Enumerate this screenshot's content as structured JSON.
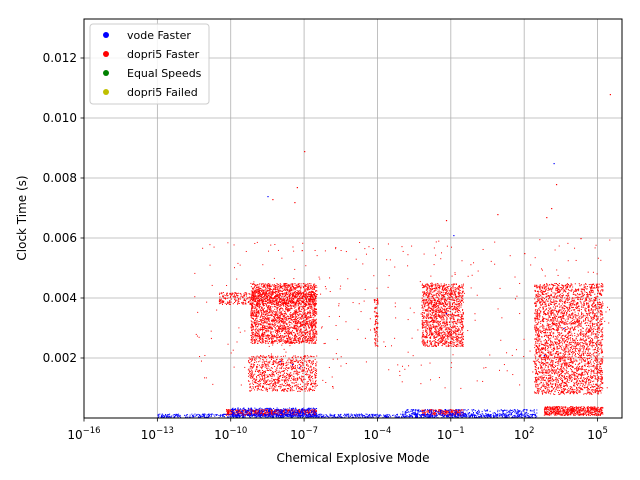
{
  "chart_data": {
    "type": "scatter",
    "xlabel": "Chemical Explosive Mode",
    "ylabel": "Clock Time (s)",
    "xscale": "log",
    "xlim_exponent": [
      -16,
      6.0
    ],
    "ylim": [
      0.0,
      0.0133
    ],
    "grid": true,
    "legend_position": "top-left",
    "x_ticks": [
      {
        "exp": -16,
        "label": "10",
        "sup": "−16"
      },
      {
        "exp": -13,
        "label": "10",
        "sup": "−13"
      },
      {
        "exp": -10,
        "label": "10",
        "sup": "−10"
      },
      {
        "exp": -7,
        "label": "10",
        "sup": "−7"
      },
      {
        "exp": -4,
        "label": "10",
        "sup": "−4"
      },
      {
        "exp": -1,
        "label": "10",
        "sup": "−1"
      },
      {
        "exp": 2,
        "label": "10",
        "sup": "2"
      },
      {
        "exp": 5,
        "label": "10",
        "sup": "5"
      }
    ],
    "y_ticks": [
      {
        "value": 0.002,
        "label": "0.002"
      },
      {
        "value": 0.004,
        "label": "0.004"
      },
      {
        "value": 0.006,
        "label": "0.006"
      },
      {
        "value": 0.008,
        "label": "0.008"
      },
      {
        "value": 0.01,
        "label": "0.010"
      },
      {
        "value": 0.012,
        "label": "0.012"
      }
    ],
    "series": [
      {
        "name": "vode Faster",
        "color": "#0000ff",
        "clusters": [
          {
            "log10x": [
              -13.0,
              2.5
            ],
            "y": [
              3e-05,
              0.00015
            ],
            "n": 900
          },
          {
            "log10x": [
              -10.0,
              -6.5
            ],
            "y": [
              5e-05,
              0.00035
            ],
            "n": 500
          },
          {
            "log10x": [
              -3.0,
              2.5
            ],
            "y": [
              5e-05,
              0.0003
            ],
            "n": 400
          }
        ],
        "points": [
          {
            "log10x": -8.0,
            "y": 0.0019
          },
          {
            "log10x": -7.5,
            "y": 0.0018
          },
          {
            "log10x": -7.2,
            "y": 0.0017
          },
          {
            "log10x": -0.9,
            "y": 0.0061
          },
          {
            "log10x": 3.2,
            "y": 0.0085
          },
          {
            "log10x": 3.6,
            "y": 0.003
          },
          {
            "log10x": -8.5,
            "y": 0.0074
          },
          {
            "log10x": -1.2,
            "y": 0.0035
          },
          {
            "log10x": 2.8,
            "y": 0.0021
          }
        ]
      },
      {
        "name": "dopri5 Faster",
        "color": "#ff0000",
        "clusters": [
          {
            "log10x": [
              -9.2,
              -6.5
            ],
            "y": [
              0.0025,
              0.0045
            ],
            "n": 2600
          },
          {
            "log10x": [
              -10.5,
              -6.5
            ],
            "y": [
              0.0038,
              0.0042
            ],
            "n": 500
          },
          {
            "log10x": [
              -9.3,
              -6.5
            ],
            "y": [
              0.0009,
              0.0021
            ],
            "n": 900
          },
          {
            "log10x": [
              -10.2,
              -6.5
            ],
            "y": [
              0.0001,
              0.0003
            ],
            "n": 700
          },
          {
            "log10x": [
              -4.15,
              -4.0
            ],
            "y": [
              0.0024,
              0.0041
            ],
            "n": 90
          },
          {
            "log10x": [
              -2.2,
              -0.5
            ],
            "y": [
              0.0024,
              0.0045
            ],
            "n": 1500
          },
          {
            "log10x": [
              -2.2,
              -0.5
            ],
            "y": [
              0.0001,
              0.0003
            ],
            "n": 250
          },
          {
            "log10x": [
              2.4,
              5.2
            ],
            "y": [
              0.0008,
              0.0045
            ],
            "n": 3200
          },
          {
            "log10x": [
              2.8,
              5.2
            ],
            "y": [
              0.0001,
              0.0004
            ],
            "n": 600
          },
          {
            "log10x": [
              -11.5,
              5.5
            ],
            "y": [
              0.001,
              0.006
            ],
            "n": 350
          }
        ],
        "points": [
          {
            "log10x": -7.0,
            "y": 0.0089
          },
          {
            "log10x": -7.3,
            "y": 0.0077
          },
          {
            "log10x": -8.3,
            "y": 0.0073
          },
          {
            "log10x": -7.4,
            "y": 0.0072
          },
          {
            "log10x": -1.2,
            "y": 0.0066
          },
          {
            "log10x": 0.9,
            "y": 0.0068
          },
          {
            "log10x": 3.3,
            "y": 0.0078
          },
          {
            "log10x": 3.1,
            "y": 0.007
          },
          {
            "log10x": 2.9,
            "y": 0.0067
          },
          {
            "log10x": 5.5,
            "y": 0.0108
          },
          {
            "log10x": 2.0,
            "y": 0.0055
          },
          {
            "log10x": 4.3,
            "y": 0.006
          },
          {
            "log10x": -7.1,
            "y": 0.0056
          }
        ]
      },
      {
        "name": "Equal Speeds",
        "color": "#008000",
        "clusters": [],
        "points": []
      },
      {
        "name": "dopri5 Failed",
        "color": "#bfbf00",
        "clusters": [],
        "points": []
      }
    ]
  }
}
